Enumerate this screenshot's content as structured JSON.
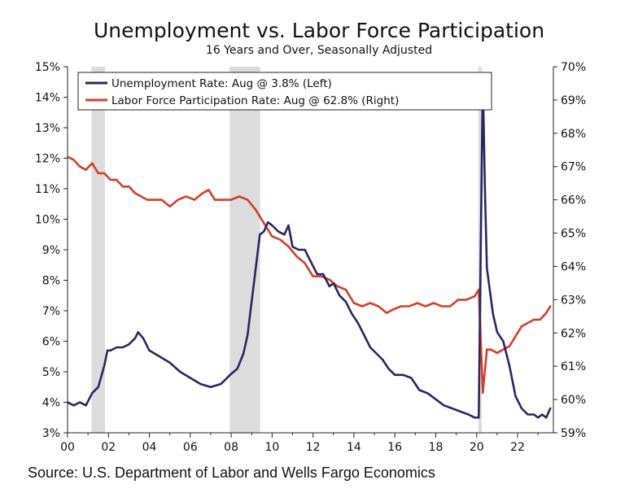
{
  "chart_data": {
    "type": "line",
    "title": "Unemployment vs. Labor Force Participation",
    "subtitle": "16 Years and Over, Seasonally Adjusted",
    "source": "Source: U.S. Department of Labor and Wells Fargo Economics",
    "x_ticks": [
      "00",
      "02",
      "04",
      "06",
      "08",
      "10",
      "12",
      "14",
      "16",
      "18",
      "20",
      "22"
    ],
    "xlim": [
      2000.0,
      2023.75
    ],
    "left_axis": {
      "ylim": [
        3,
        15
      ],
      "ticks": [
        "3%",
        "4%",
        "5%",
        "6%",
        "7%",
        "8%",
        "9%",
        "10%",
        "11%",
        "12%",
        "13%",
        "14%",
        "15%"
      ]
    },
    "right_axis": {
      "ylim": [
        59,
        70
      ],
      "ticks": [
        "59%",
        "60%",
        "61%",
        "62%",
        "63%",
        "64%",
        "65%",
        "66%",
        "67%",
        "68%",
        "69%",
        "70%"
      ]
    },
    "legend_placement": "top-left",
    "recessions": [
      [
        2001.17,
        2001.83
      ],
      [
        2007.92,
        2009.42
      ],
      [
        2020.08,
        2020.25
      ]
    ],
    "colors": {
      "unemployment": "#2b2562",
      "participation": "#d23f28",
      "recession": "#dcdcdc"
    },
    "series": [
      {
        "name": "Unemployment Rate: Aug @ 3.8% (Left)",
        "axis": "left",
        "x": [
          2000.0,
          2000.3,
          2000.6,
          2000.9,
          2001.2,
          2001.5,
          2001.8,
          2001.95,
          2002.1,
          2002.4,
          2002.7,
          2003.0,
          2003.3,
          2003.45,
          2003.7,
          2004.0,
          2004.5,
          2005.0,
          2005.5,
          2006.0,
          2006.5,
          2007.0,
          2007.5,
          2007.95,
          2008.3,
          2008.6,
          2008.8,
          2009.0,
          2009.2,
          2009.4,
          2009.6,
          2009.8,
          2010.0,
          2010.3,
          2010.6,
          2010.8,
          2011.0,
          2011.3,
          2011.6,
          2011.9,
          2012.2,
          2012.5,
          2012.8,
          2013.0,
          2013.3,
          2013.6,
          2013.9,
          2014.2,
          2014.5,
          2014.8,
          2015.1,
          2015.4,
          2015.7,
          2016.0,
          2016.4,
          2016.8,
          2017.2,
          2017.6,
          2018.0,
          2018.4,
          2018.8,
          2019.2,
          2019.6,
          2019.9,
          2020.1,
          2020.3,
          2020.4,
          2020.5,
          2020.6,
          2020.8,
          2021.0,
          2021.3,
          2021.6,
          2021.9,
          2022.2,
          2022.5,
          2022.8,
          2023.0,
          2023.2,
          2023.4,
          2023.6
        ],
        "values": [
          4.0,
          3.9,
          4.0,
          3.9,
          4.3,
          4.5,
          5.2,
          5.7,
          5.7,
          5.8,
          5.8,
          5.9,
          6.1,
          6.3,
          6.1,
          5.7,
          5.5,
          5.3,
          5.0,
          4.8,
          4.6,
          4.5,
          4.6,
          4.9,
          5.1,
          5.6,
          6.2,
          7.3,
          8.4,
          9.5,
          9.6,
          9.9,
          9.8,
          9.6,
          9.5,
          9.8,
          9.1,
          9.0,
          9.0,
          8.6,
          8.2,
          8.2,
          7.8,
          7.9,
          7.5,
          7.3,
          6.9,
          6.6,
          6.2,
          5.8,
          5.6,
          5.4,
          5.1,
          4.9,
          4.9,
          4.8,
          4.4,
          4.3,
          4.1,
          3.9,
          3.8,
          3.7,
          3.6,
          3.5,
          3.5,
          14.7,
          11.1,
          8.4,
          7.9,
          6.9,
          6.3,
          6.0,
          5.2,
          4.2,
          3.8,
          3.6,
          3.6,
          3.5,
          3.6,
          3.5,
          3.8
        ]
      },
      {
        "name": "Labor Force Participation Rate: Aug @ 62.8% (Right)",
        "axis": "right",
        "x": [
          2000.0,
          2000.3,
          2000.6,
          2000.9,
          2001.2,
          2001.5,
          2001.8,
          2002.1,
          2002.4,
          2002.7,
          2003.0,
          2003.3,
          2003.6,
          2003.9,
          2004.2,
          2004.6,
          2005.0,
          2005.4,
          2005.8,
          2006.2,
          2006.6,
          2006.9,
          2007.2,
          2007.6,
          2008.0,
          2008.4,
          2008.8,
          2009.2,
          2009.6,
          2010.0,
          2010.4,
          2010.8,
          2011.2,
          2011.6,
          2012.0,
          2012.4,
          2012.8,
          2013.2,
          2013.6,
          2014.0,
          2014.4,
          2014.8,
          2015.2,
          2015.6,
          2015.9,
          2016.3,
          2016.7,
          2017.1,
          2017.5,
          2017.9,
          2018.3,
          2018.7,
          2019.1,
          2019.5,
          2019.9,
          2020.1,
          2020.3,
          2020.5,
          2020.7,
          2021.0,
          2021.3,
          2021.6,
          2021.9,
          2022.2,
          2022.5,
          2022.8,
          2023.1,
          2023.4,
          2023.6
        ],
        "values": [
          67.3,
          67.2,
          67.0,
          66.9,
          67.1,
          66.8,
          66.8,
          66.6,
          66.6,
          66.4,
          66.4,
          66.2,
          66.1,
          66.0,
          66.0,
          66.0,
          65.8,
          66.0,
          66.1,
          66.0,
          66.2,
          66.3,
          66.0,
          66.0,
          66.0,
          66.1,
          66.0,
          65.7,
          65.3,
          64.9,
          64.8,
          64.6,
          64.3,
          64.1,
          63.7,
          63.7,
          63.6,
          63.4,
          63.3,
          62.9,
          62.8,
          62.9,
          62.8,
          62.6,
          62.7,
          62.8,
          62.8,
          62.9,
          62.8,
          62.9,
          62.8,
          62.8,
          63.0,
          63.0,
          63.1,
          63.3,
          60.2,
          61.5,
          61.5,
          61.4,
          61.5,
          61.6,
          61.9,
          62.2,
          62.3,
          62.4,
          62.4,
          62.6,
          62.8
        ]
      }
    ]
  }
}
